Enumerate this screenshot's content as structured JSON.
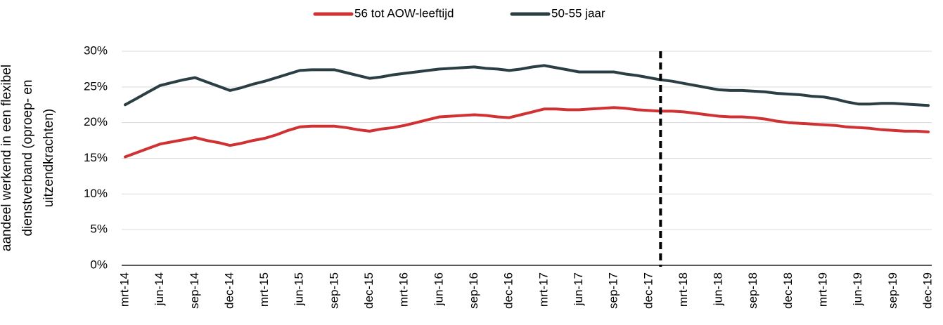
{
  "chart_data": {
    "type": "line",
    "ylabel": [
      "aandeel werkend in een flexibel",
      "dienstverband (oproep- en",
      "uitzendkrachten)"
    ],
    "categories": [
      "mrt-14",
      null,
      null,
      "jun-14",
      null,
      null,
      "sep-14",
      null,
      null,
      "dec-14",
      null,
      null,
      "mrt-15",
      null,
      null,
      "jun-15",
      null,
      null,
      "sep-15",
      null,
      null,
      "dec-15",
      null,
      null,
      "mrt-16",
      null,
      null,
      "jun-16",
      null,
      null,
      "sep-16",
      null,
      null,
      "dec-16",
      null,
      null,
      "mrt-17",
      null,
      null,
      "jun-17",
      null,
      null,
      "sep-17",
      null,
      null,
      "dec-17",
      null,
      null,
      "mrt-18",
      null,
      null,
      "jun-18",
      null,
      null,
      "sep-18",
      null,
      null,
      "dec-18",
      null,
      null,
      "mrt-19",
      null,
      null,
      "jun-19",
      null,
      null,
      "sep-19",
      null,
      null,
      "dec-19"
    ],
    "series": [
      {
        "name": "56 tot AOW-leeftijd",
        "color": "#d03234",
        "values": [
          15.2,
          15.8,
          16.4,
          17.0,
          17.3,
          17.6,
          17.9,
          17.5,
          17.2,
          16.8,
          17.1,
          17.5,
          17.8,
          18.3,
          18.9,
          19.4,
          19.5,
          19.5,
          19.5,
          19.3,
          19.0,
          18.8,
          19.1,
          19.3,
          19.6,
          20.0,
          20.4,
          20.8,
          20.9,
          21.0,
          21.1,
          21.0,
          20.8,
          20.7,
          21.1,
          21.5,
          21.9,
          21.9,
          21.8,
          21.8,
          21.9,
          22.0,
          22.1,
          22.0,
          21.8,
          21.7,
          21.6,
          21.6,
          21.5,
          21.3,
          21.1,
          20.9,
          20.8,
          20.8,
          20.7,
          20.5,
          20.2,
          20.0,
          19.9,
          19.8,
          19.7,
          19.6,
          19.4,
          19.3,
          19.2,
          19.0,
          18.9,
          18.8,
          18.8,
          18.7
        ]
      },
      {
        "name": "50-55 jaar",
        "color": "#2b3e44",
        "values": [
          22.5,
          23.4,
          24.3,
          25.2,
          25.6,
          26.0,
          26.3,
          25.7,
          25.1,
          24.5,
          24.9,
          25.4,
          25.8,
          26.3,
          26.8,
          27.3,
          27.4,
          27.4,
          27.4,
          27.0,
          26.6,
          26.2,
          26.4,
          26.7,
          26.9,
          27.1,
          27.3,
          27.5,
          27.6,
          27.7,
          27.8,
          27.6,
          27.5,
          27.3,
          27.5,
          27.8,
          28.0,
          27.7,
          27.4,
          27.1,
          27.1,
          27.1,
          27.1,
          26.8,
          26.6,
          26.3,
          26.0,
          25.8,
          25.5,
          25.2,
          24.9,
          24.6,
          24.5,
          24.5,
          24.4,
          24.3,
          24.1,
          24.0,
          23.9,
          23.7,
          23.6,
          23.3,
          22.9,
          22.6,
          22.6,
          22.7,
          22.7,
          22.6,
          22.5,
          22.4
        ]
      }
    ],
    "ylim": [
      0,
      30
    ],
    "yticks": [
      {
        "value": 0,
        "label": "0%"
      },
      {
        "value": 5,
        "label": "5%"
      },
      {
        "value": 10,
        "label": "10%"
      },
      {
        "value": 15,
        "label": "15%"
      },
      {
        "value": 20,
        "label": "20%"
      },
      {
        "value": 25,
        "label": "25%"
      },
      {
        "value": 30,
        "label": "30%"
      }
    ],
    "grid": true,
    "legend": "top",
    "vline": {
      "category_index": 46,
      "style": "dashed",
      "color": "#000000"
    }
  }
}
